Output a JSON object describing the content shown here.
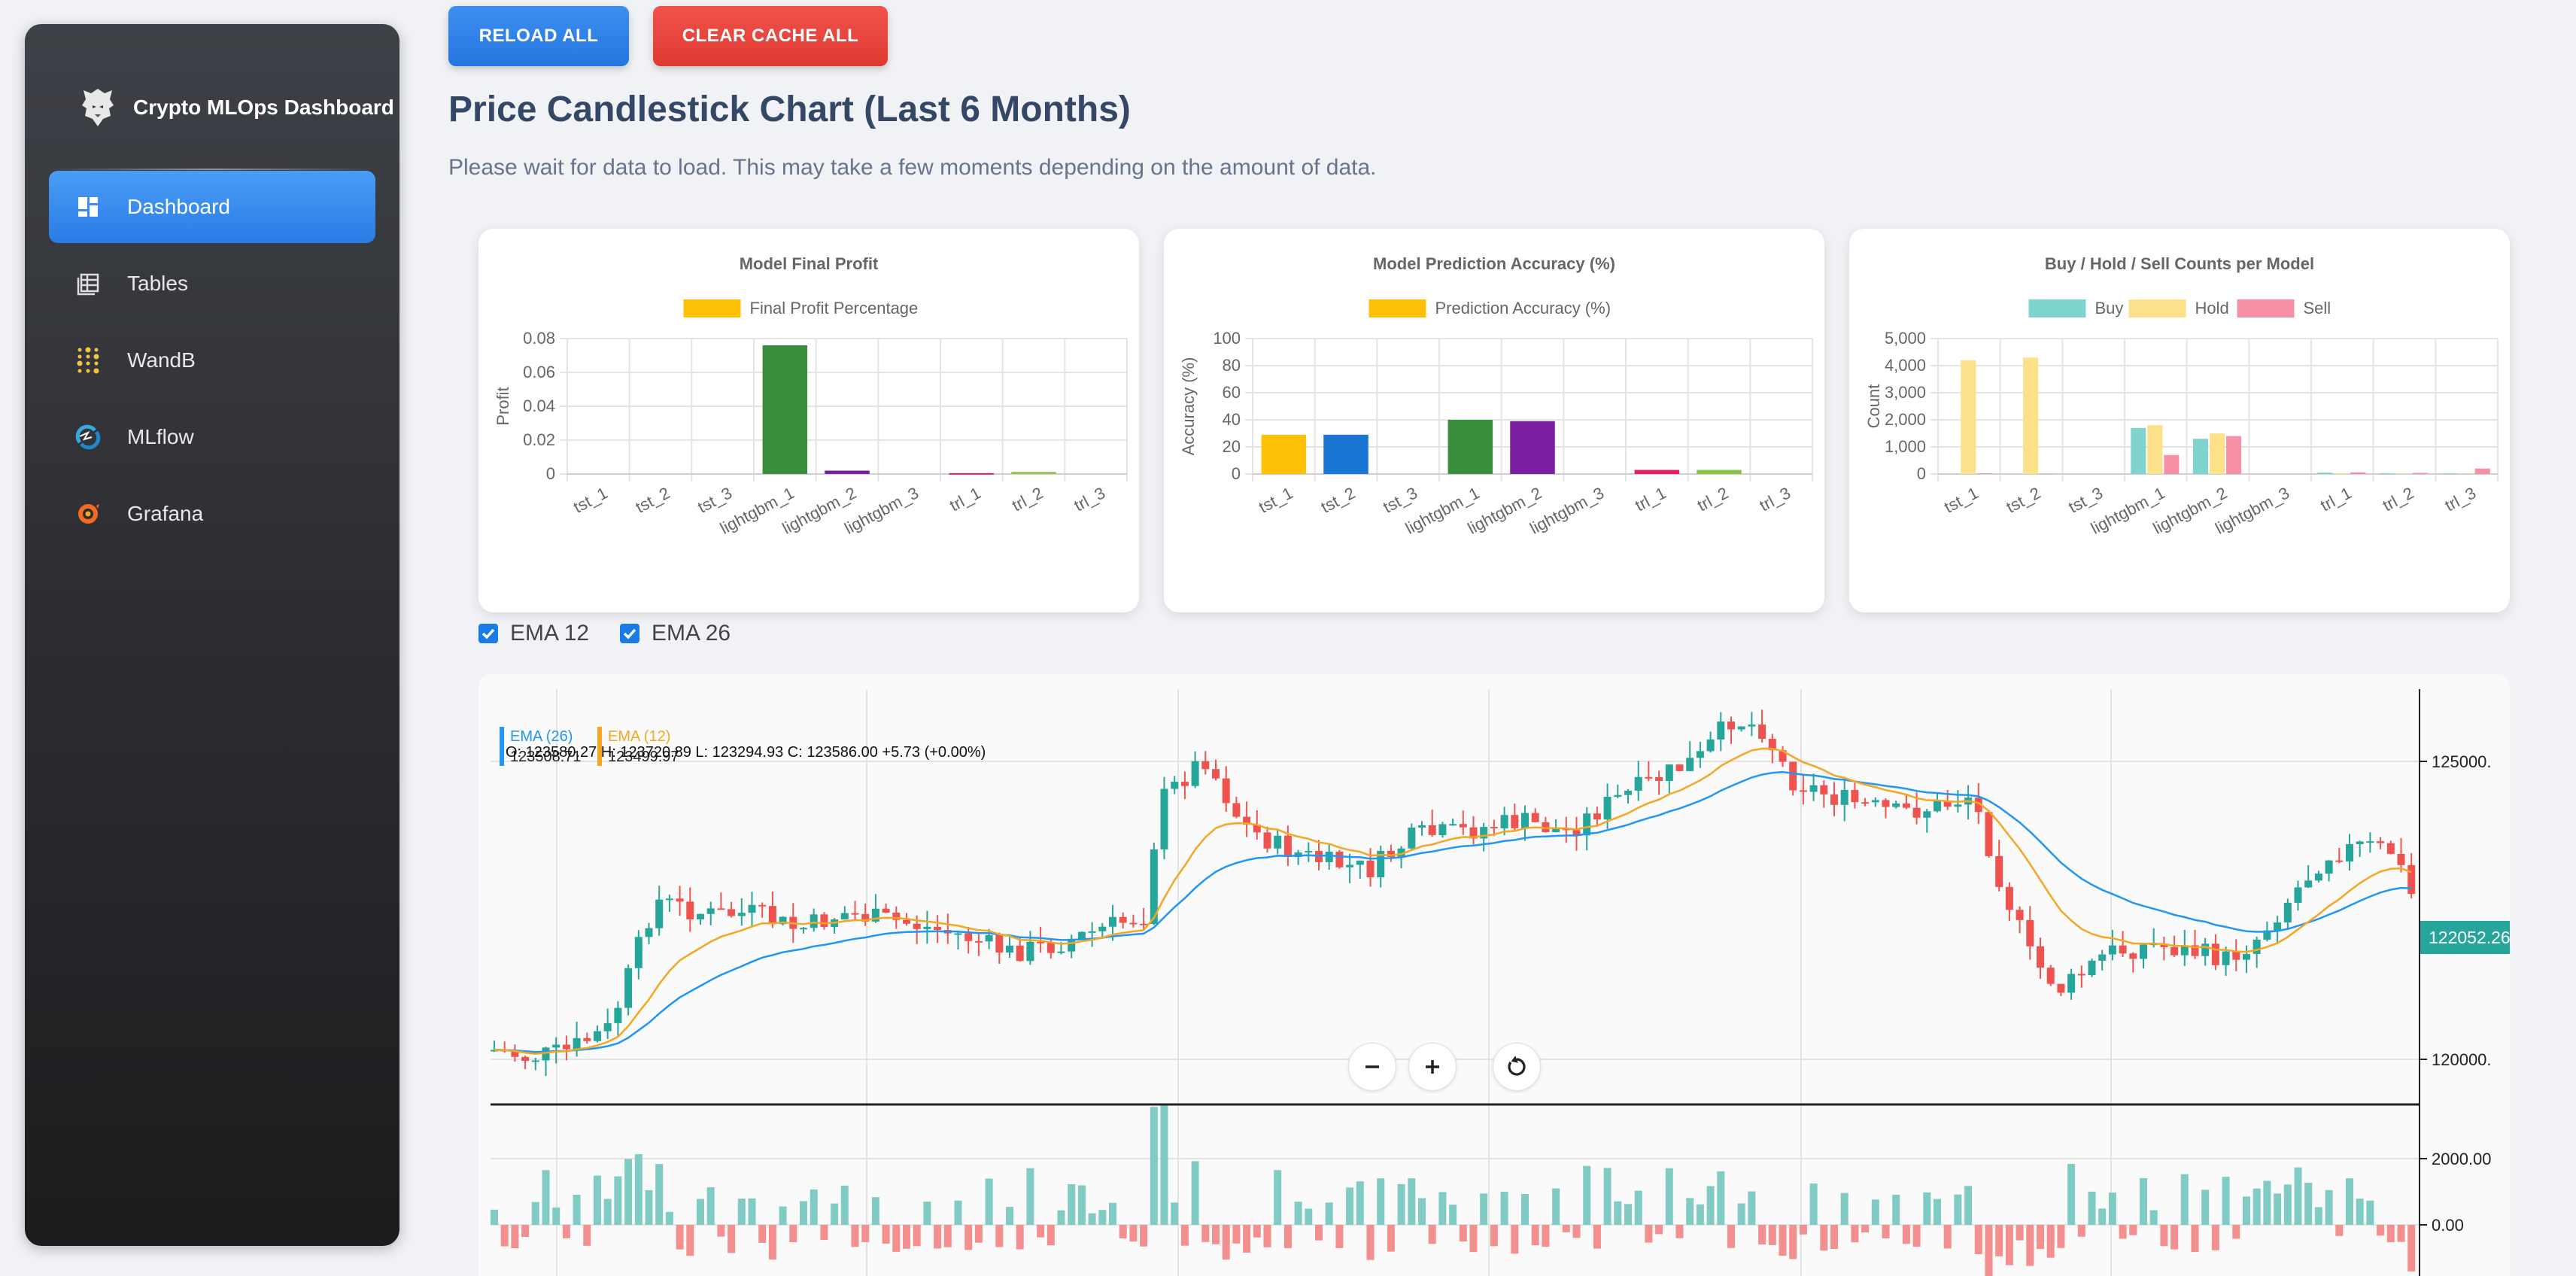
{
  "brand": {
    "name": "Crypto MLOps Dashboard",
    "logo_icon": "wolf-logo-icon"
  },
  "sidebar": {
    "items": [
      {
        "label": "Dashboard",
        "icon": "dashboard-icon",
        "active": true
      },
      {
        "label": "Tables",
        "icon": "table-icon",
        "active": false
      },
      {
        "label": "WandB",
        "icon": "wandb-icon",
        "active": false
      },
      {
        "label": "MLflow",
        "icon": "mlflow-icon",
        "active": false
      },
      {
        "label": "Grafana",
        "icon": "grafana-icon",
        "active": false
      }
    ]
  },
  "toolbar": {
    "reload_label": "RELOAD ALL",
    "clear_label": "CLEAR CACHE ALL"
  },
  "page": {
    "title": "Price Candlestick Chart (Last 6 Months)",
    "subtitle": "Please wait for data to load. This may take a few moments depending on the amount of data."
  },
  "colors": {
    "accent": "#2a7be6",
    "danger": "#e03a32",
    "up": "#26a69a",
    "down": "#ef5350",
    "ema12": "#f5a623",
    "ema26": "#2196f3"
  },
  "chart_data": [
    {
      "type": "bar",
      "title": "Model Final Profit",
      "ylabel": "Profit",
      "categories": [
        "tst_1",
        "tst_2",
        "tst_3",
        "lightgbm_1",
        "lightgbm_2",
        "lightgbm_3",
        "trl_1",
        "trl_2",
        "trl_3"
      ],
      "ylim": [
        0,
        0.08
      ],
      "yticks": [
        "0.08",
        "0.06",
        "0.04",
        "0.02",
        "0"
      ],
      "series": [
        {
          "name": "Final Profit Percentage",
          "color": "#ffc107",
          "values": [
            0,
            0,
            0,
            0.076,
            0.002,
            0,
            0.0005,
            0.0012,
            0
          ],
          "bar_colors": [
            "#ffc107",
            "#1976d2",
            "#9e9e9e",
            "#388e3c",
            "#7b1fa2",
            "#00897b",
            "#e91e63",
            "#8bc34a",
            "#5d4037"
          ]
        }
      ]
    },
    {
      "type": "bar",
      "title": "Model Prediction Accuracy (%)",
      "ylabel": "Accuracy (%)",
      "categories": [
        "tst_1",
        "tst_2",
        "tst_3",
        "lightgbm_1",
        "lightgbm_2",
        "lightgbm_3",
        "trl_1",
        "trl_2",
        "trl_3"
      ],
      "ylim": [
        0,
        100
      ],
      "yticks": [
        "100",
        "80",
        "60",
        "40",
        "20",
        "0"
      ],
      "series": [
        {
          "name": "Prediction Accuracy (%)",
          "color": "#ffc107",
          "values": [
            29,
            29,
            0,
            40,
            39,
            0,
            3,
            3,
            0
          ],
          "bar_colors": [
            "#ffc107",
            "#1976d2",
            "#9e9e9e",
            "#388e3c",
            "#7b1fa2",
            "#00897b",
            "#e91e63",
            "#8bc34a",
            "#5d4037"
          ]
        }
      ]
    },
    {
      "type": "bar",
      "title": "Buy / Hold / Sell Counts per Model",
      "ylabel": "Count",
      "categories": [
        "tst_1",
        "tst_2",
        "tst_3",
        "lightgbm_1",
        "lightgbm_2",
        "lightgbm_3",
        "trl_1",
        "trl_2",
        "trl_3"
      ],
      "ylim": [
        0,
        5000
      ],
      "yticks": [
        "5,000",
        "4,000",
        "3,000",
        "2,000",
        "1,000",
        "0"
      ],
      "series": [
        {
          "name": "Buy",
          "color": "#80d4d0",
          "values": [
            0,
            0,
            0,
            1700,
            1300,
            0,
            50,
            30,
            20
          ]
        },
        {
          "name": "Hold",
          "color": "#fde08a",
          "values": [
            4200,
            4300,
            0,
            1800,
            1500,
            0,
            30,
            20,
            10
          ]
        },
        {
          "name": "Sell",
          "color": "#f78fa7",
          "values": [
            20,
            10,
            0,
            700,
            1400,
            0,
            60,
            40,
            200
          ]
        }
      ]
    },
    {
      "type": "candlestick",
      "legend": [
        {
          "name": "EMA (26)",
          "value": "123508.71",
          "color": "#2196f3"
        },
        {
          "name": "EMA (12)",
          "value": "123499.97",
          "color": "#f5a623"
        }
      ],
      "ohlc_readout": "O: 123580.27 H: 123720.89 L: 123294.93 C: 123586.00 +5.73 (+0.00%)",
      "price_ticks": [
        "125000.",
        "120000."
      ],
      "last_price": "122052.26",
      "volume_ticks": [
        "2000.00",
        "0.00"
      ]
    }
  ],
  "ema_toggles": [
    {
      "label": "EMA 12",
      "checked": true
    },
    {
      "label": "EMA 26",
      "checked": true
    }
  ]
}
